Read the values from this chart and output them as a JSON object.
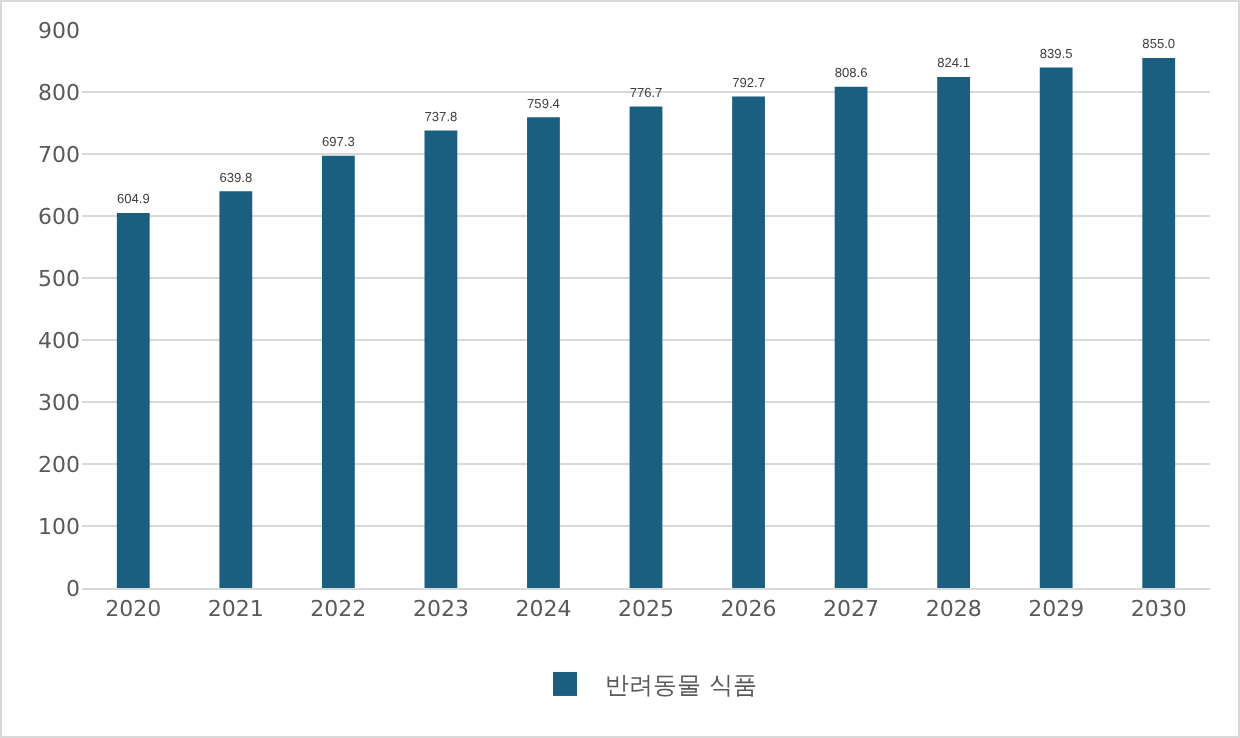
{
  "chart_data": {
    "type": "bar",
    "categories": [
      "2020",
      "2021",
      "2022",
      "2023",
      "2024",
      "2025",
      "2026",
      "2027",
      "2028",
      "2029",
      "2030"
    ],
    "series": [
      {
        "name": "반려동물 식품",
        "color": "#1a5e80",
        "values": [
          604.9,
          639.8,
          697.3,
          737.8,
          759.4,
          776.7,
          792.7,
          808.6,
          824.1,
          839.5,
          855.0
        ],
        "value_labels": [
          "604.9",
          "639.8",
          "697.3",
          "737.8",
          "759.4",
          "776.7",
          "792.7",
          "808.6",
          "824.1",
          "839.5",
          "855.0"
        ]
      }
    ],
    "ylim": [
      0,
      900
    ],
    "yticks": [
      0,
      100,
      200,
      300,
      400,
      500,
      600,
      700,
      800,
      900
    ],
    "grid": "y",
    "legend": "bottom"
  }
}
